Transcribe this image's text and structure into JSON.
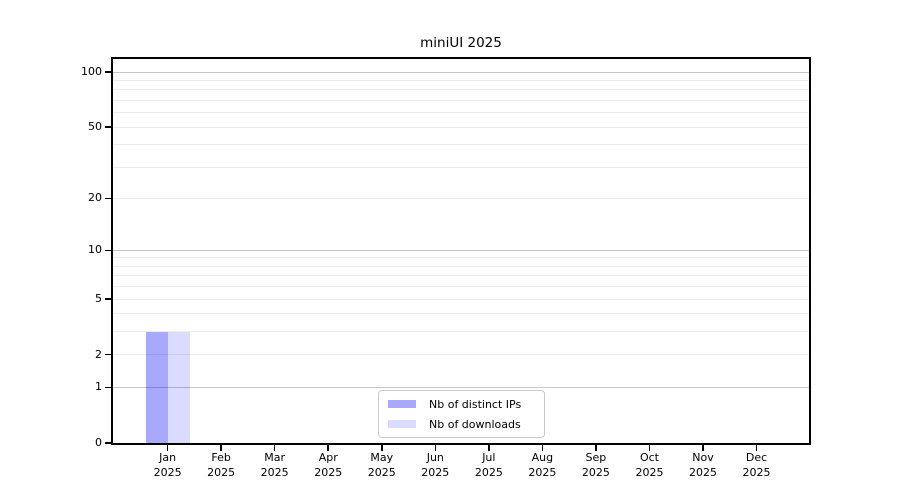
{
  "figure": {
    "title": "miniUI 2025"
  },
  "legend": {
    "items": [
      {
        "key": "distinct-ips",
        "label": "Nb of distinct IPs",
        "color": "rgba(0,0,255,0.34)"
      },
      {
        "key": "downloads",
        "label": "Nb of downloads",
        "color": "rgba(0,0,255,0.14)"
      }
    ]
  },
  "chart_data": {
    "type": "bar",
    "title": "miniUI 2025",
    "categories": [
      "Jan 2025",
      "Feb 2025",
      "Mar 2025",
      "Apr 2025",
      "May 2025",
      "Jun 2025",
      "Jul 2025",
      "Aug 2025",
      "Sep 2025",
      "Oct 2025",
      "Nov 2025",
      "Dec 2025"
    ],
    "x_tick_months": [
      "Jan",
      "Feb",
      "Mar",
      "Apr",
      "May",
      "Jun",
      "Jul",
      "Aug",
      "Sep",
      "Oct",
      "Nov",
      "Dec"
    ],
    "x_tick_year": "2025",
    "series": [
      {
        "key": "distinct-ips",
        "name": "Nb of distinct IPs",
        "color": "rgba(0,0,255,0.34)",
        "values": [
          3,
          0,
          0,
          0,
          0,
          0,
          0,
          0,
          0,
          0,
          0,
          0
        ]
      },
      {
        "key": "downloads",
        "name": "Nb of downloads",
        "color": "rgba(0,0,255,0.14)",
        "values": [
          3,
          0,
          0,
          0,
          0,
          0,
          0,
          0,
          0,
          0,
          0,
          0
        ]
      }
    ],
    "y_axis": {
      "scale": "log1p",
      "ticks": [
        100,
        50,
        20,
        10,
        5,
        2,
        1,
        0
      ],
      "max": 118,
      "gridlines_major": [
        1,
        10,
        100
      ],
      "gridlines_minor": [
        2,
        3,
        4,
        5,
        6,
        7,
        8,
        9,
        20,
        30,
        40,
        50,
        60,
        70,
        80,
        90
      ],
      "grid_color_major": "#c6c6c6",
      "grid_color_minor": "#ececec"
    },
    "legend_position": "lower center",
    "grid": true
  }
}
